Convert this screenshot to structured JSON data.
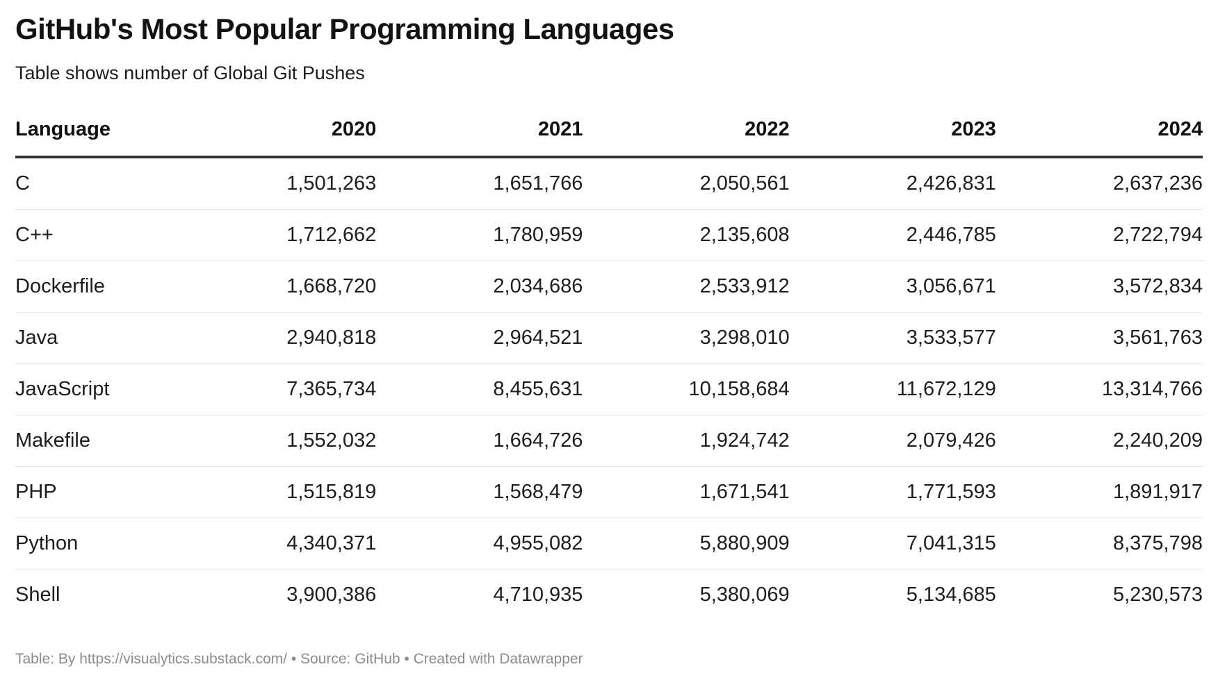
{
  "header": {
    "title": "GitHub's Most Popular Programming Languages",
    "subtitle": "Table shows number of Global Git Pushes"
  },
  "table": {
    "columns": [
      "Language",
      "2020",
      "2021",
      "2022",
      "2023",
      "2024"
    ],
    "rows": [
      [
        "C",
        "1,501,263",
        "1,651,766",
        "2,050,561",
        "2,426,831",
        "2,637,236"
      ],
      [
        "C++",
        "1,712,662",
        "1,780,959",
        "2,135,608",
        "2,446,785",
        "2,722,794"
      ],
      [
        "Dockerfile",
        "1,668,720",
        "2,034,686",
        "2,533,912",
        "3,056,671",
        "3,572,834"
      ],
      [
        "Java",
        "2,940,818",
        "2,964,521",
        "3,298,010",
        "3,533,577",
        "3,561,763"
      ],
      [
        "JavaScript",
        "7,365,734",
        "8,455,631",
        "10,158,684",
        "11,672,129",
        "13,314,766"
      ],
      [
        "Makefile",
        "1,552,032",
        "1,664,726",
        "1,924,742",
        "2,079,426",
        "2,240,209"
      ],
      [
        "PHP",
        "1,515,819",
        "1,568,479",
        "1,671,541",
        "1,771,593",
        "1,891,917"
      ],
      [
        "Python",
        "4,340,371",
        "4,955,082",
        "5,880,909",
        "7,041,315",
        "8,375,798"
      ],
      [
        "Shell",
        "3,900,386",
        "4,710,935",
        "5,380,069",
        "5,134,685",
        "5,230,573"
      ]
    ]
  },
  "footer": {
    "text": "Table: By https://visualytics.substack.com/ • Source: GitHub • Created with Datawrapper"
  },
  "colors": {
    "background": "#ffffff",
    "title_text": "#121212",
    "body_text": "#1d1d1d",
    "header_rule": "#333333",
    "row_rule": "#e3e3e3",
    "footer_text": "#8c8c8c"
  },
  "chart_data": {
    "type": "table",
    "title": "GitHub's Most Popular Programming Languages",
    "subtitle": "Table shows number of Global Git Pushes",
    "columns": [
      "Language",
      "2020",
      "2021",
      "2022",
      "2023",
      "2024"
    ],
    "categories": [
      "C",
      "C++",
      "Dockerfile",
      "Java",
      "JavaScript",
      "Makefile",
      "PHP",
      "Python",
      "Shell"
    ],
    "series": [
      {
        "name": "2020",
        "values": [
          1501263,
          1712662,
          1668720,
          2940818,
          7365734,
          1552032,
          1515819,
          4340371,
          3900386
        ]
      },
      {
        "name": "2021",
        "values": [
          1651766,
          1780959,
          2034686,
          2964521,
          8455631,
          1664726,
          1568479,
          4955082,
          4710935
        ]
      },
      {
        "name": "2022",
        "values": [
          2050561,
          2135608,
          2533912,
          3298010,
          10158684,
          1924742,
          1671541,
          5880909,
          5380069
        ]
      },
      {
        "name": "2023",
        "values": [
          2426831,
          2446785,
          3056671,
          3533577,
          11672129,
          2079426,
          1771593,
          7041315,
          5134685
        ]
      },
      {
        "name": "2024",
        "values": [
          2637236,
          2722794,
          3572834,
          3561763,
          13314766,
          2240209,
          1891917,
          8375798,
          5230573
        ]
      }
    ],
    "value_format": "thousands-separated integers",
    "source_note": "Table: By https://visualytics.substack.com/ • Source: GitHub • Created with Datawrapper"
  }
}
